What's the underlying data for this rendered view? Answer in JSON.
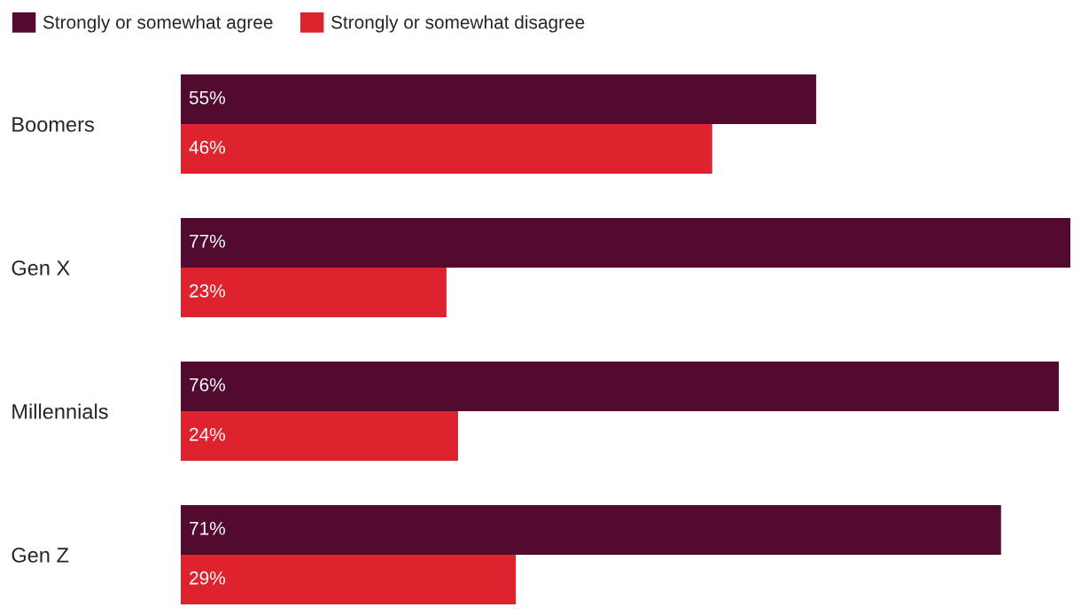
{
  "chart_data": {
    "type": "bar",
    "orientation": "horizontal",
    "categories": [
      "Boomers",
      "Gen X",
      "Millennials",
      "Gen Z"
    ],
    "series": [
      {
        "name": "Strongly or somewhat agree",
        "color": "#520a2e",
        "values": [
          55,
          77,
          76,
          71
        ],
        "value_labels": [
          "55%",
          "77%",
          "76%",
          "71%"
        ]
      },
      {
        "name": "Strongly or somewhat disagree",
        "color": "#de222e",
        "values": [
          46,
          23,
          24,
          29
        ],
        "value_labels": [
          "46%",
          "23%",
          "24%",
          "29%"
        ]
      }
    ],
    "legend": "top left",
    "grid": false,
    "tick_labels": "y"
  }
}
